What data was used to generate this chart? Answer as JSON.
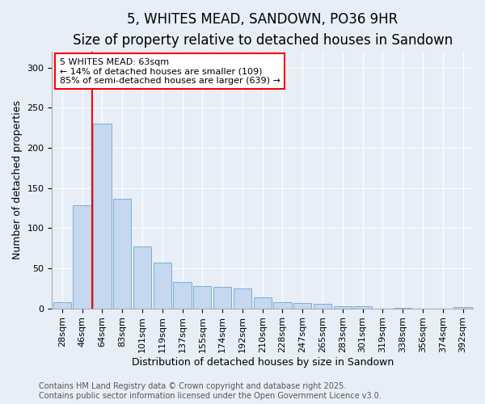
{
  "title": "5, WHITES MEAD, SANDOWN, PO36 9HR",
  "subtitle": "Size of property relative to detached houses in Sandown",
  "xlabel": "Distribution of detached houses by size in Sandown",
  "ylabel": "Number of detached properties",
  "categories": [
    "28sqm",
    "46sqm",
    "64sqm",
    "83sqm",
    "101sqm",
    "119sqm",
    "137sqm",
    "155sqm",
    "174sqm",
    "192sqm",
    "210sqm",
    "228sqm",
    "247sqm",
    "265sqm",
    "283sqm",
    "301sqm",
    "319sqm",
    "338sqm",
    "356sqm",
    "374sqm",
    "392sqm"
  ],
  "values": [
    8,
    128,
    230,
    137,
    77,
    57,
    33,
    28,
    27,
    25,
    14,
    8,
    7,
    6,
    3,
    3,
    0,
    1,
    0,
    0,
    2
  ],
  "bar_color": "#c5d8f0",
  "bar_edge_color": "#7bafd4",
  "vline_x": 1.5,
  "annotation_title": "5 WHITES MEAD: 63sqm",
  "annotation_line1": "← 14% of detached houses are smaller (109)",
  "annotation_line2": "85% of semi-detached houses are larger (639) →",
  "ylim": [
    0,
    320
  ],
  "yticks": [
    0,
    50,
    100,
    150,
    200,
    250,
    300
  ],
  "footer1": "Contains HM Land Registry data © Crown copyright and database right 2025.",
  "footer2": "Contains public sector information licensed under the Open Government Licence v3.0.",
  "background_color": "#e8eef7",
  "plot_background": "#e8eef7",
  "grid_color": "#ffffff",
  "title_fontsize": 12,
  "subtitle_fontsize": 10,
  "axis_label_fontsize": 9,
  "tick_fontsize": 8,
  "annotation_fontsize": 8,
  "footer_fontsize": 7
}
